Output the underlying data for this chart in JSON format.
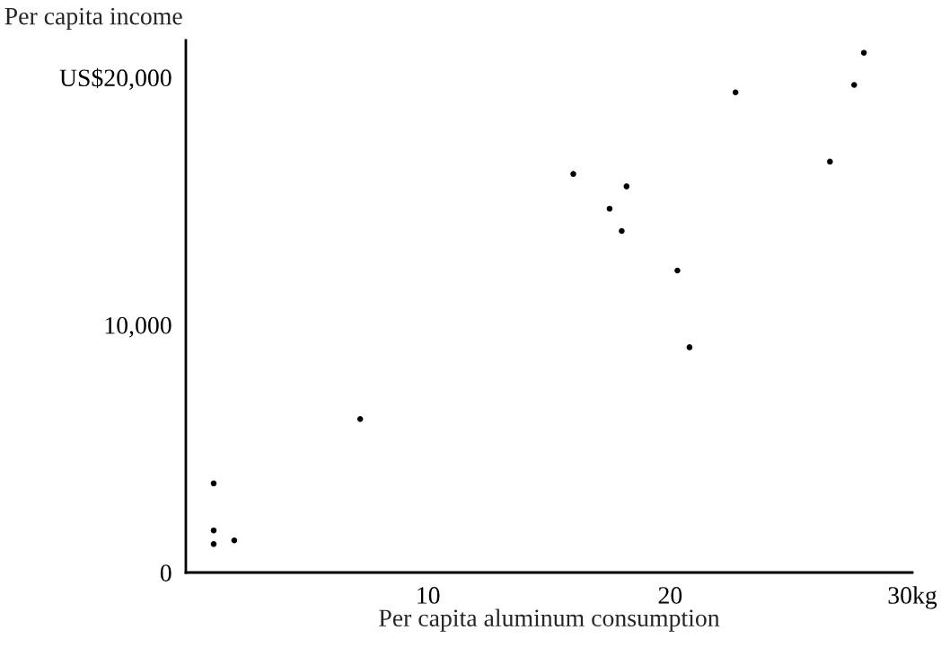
{
  "chart_data": {
    "type": "scatter",
    "xlabel": "Per capita aluminum consumption",
    "ylabel": "Per capita income",
    "x": [
      1.15,
      1.15,
      1.15,
      2.0,
      7.2,
      16.0,
      17.5,
      18.2,
      18.0,
      20.3,
      20.8,
      22.7,
      26.6,
      27.6,
      28.0
    ],
    "values": [
      3600,
      1700,
      1150,
      1300,
      6200,
      16100,
      14700,
      15600,
      13800,
      12200,
      9100,
      19400,
      16600,
      19700,
      21000
    ],
    "color": "#000000",
    "marker": "circle",
    "xlim": [
      0,
      30
    ],
    "xticks": [
      10,
      20,
      {
        "value": 30,
        "label": "30kg"
      }
    ],
    "ylim": [
      0,
      21500
    ],
    "yticks": [
      0,
      {
        "value": 10000,
        "label": "10,000"
      },
      {
        "value": 20000,
        "label": "US$20,000"
      }
    ],
    "grid": false
  }
}
